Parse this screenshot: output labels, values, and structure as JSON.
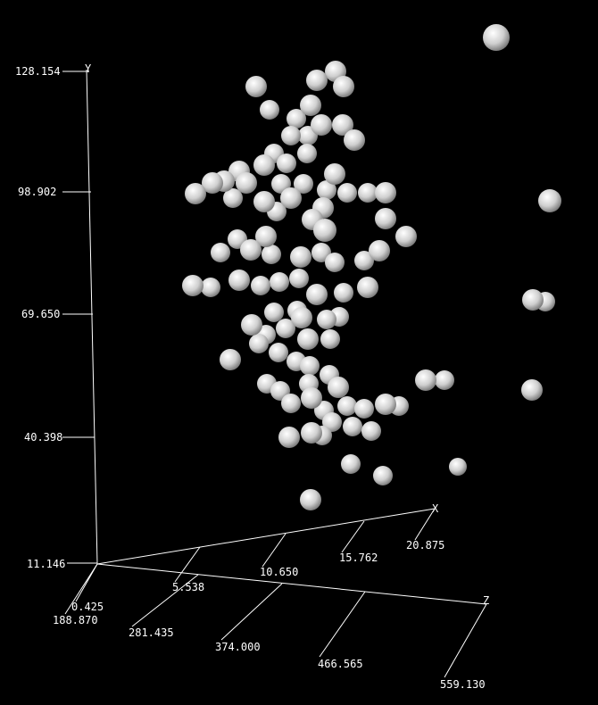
{
  "chart_data": {
    "type": "scatter3d",
    "axes": {
      "x": {
        "label": "X",
        "ticks": [
          "0.425",
          "5.538",
          "10.650",
          "15.762",
          "20.875"
        ],
        "range": [
          0.425,
          20.875
        ]
      },
      "y": {
        "label": "Y",
        "ticks": [
          "11.146",
          "40.398",
          "69.650",
          "98.902",
          "128.154"
        ],
        "range": [
          11.146,
          128.154
        ]
      },
      "z": {
        "label": "Z",
        "ticks": [
          "188.870",
          "281.435",
          "374.000",
          "466.565",
          "559.130"
        ],
        "range": [
          188.87,
          559.13
        ]
      }
    },
    "colors": {
      "background": "#000000",
      "axes": "#ffffff",
      "points": "#d9d9d9"
    },
    "points_screen": [
      [
        556,
        42,
        15
      ],
      [
        376,
        80,
        12
      ],
      [
        287,
        97,
        12
      ],
      [
        355,
        90,
        12
      ],
      [
        385,
        97,
        12
      ],
      [
        302,
        123,
        11
      ],
      [
        348,
        118,
        12
      ],
      [
        332,
        133,
        11
      ],
      [
        384,
        140,
        12
      ],
      [
        360,
        140,
        12
      ],
      [
        397,
        157,
        12
      ],
      [
        345,
        152,
        11
      ],
      [
        326,
        152,
        11
      ],
      [
        307,
        172,
        11
      ],
      [
        344,
        172,
        11
      ],
      [
        321,
        183,
        11
      ],
      [
        296,
        185,
        12
      ],
      [
        268,
        192,
        12
      ],
      [
        251,
        203,
        12
      ],
      [
        238,
        205,
        12
      ],
      [
        219,
        217,
        12
      ],
      [
        276,
        205,
        12
      ],
      [
        261,
        222,
        11
      ],
      [
        315,
        206,
        11
      ],
      [
        340,
        206,
        11
      ],
      [
        375,
        195,
        12
      ],
      [
        366,
        213,
        11
      ],
      [
        389,
        216,
        11
      ],
      [
        412,
        216,
        11
      ],
      [
        432,
        216,
        12
      ],
      [
        616,
        225,
        13
      ],
      [
        296,
        226,
        12
      ],
      [
        326,
        222,
        12
      ],
      [
        310,
        237,
        11
      ],
      [
        362,
        233,
        12
      ],
      [
        350,
        246,
        12
      ],
      [
        364,
        258,
        13
      ],
      [
        432,
        245,
        12
      ],
      [
        455,
        265,
        12
      ],
      [
        266,
        268,
        11
      ],
      [
        298,
        265,
        12
      ],
      [
        281,
        280,
        12
      ],
      [
        247,
        283,
        11
      ],
      [
        304,
        285,
        11
      ],
      [
        337,
        288,
        12
      ],
      [
        360,
        283,
        11
      ],
      [
        375,
        294,
        11
      ],
      [
        425,
        281,
        12
      ],
      [
        408,
        292,
        11
      ],
      [
        268,
        314,
        12
      ],
      [
        216,
        320,
        12
      ],
      [
        236,
        322,
        11
      ],
      [
        292,
        320,
        11
      ],
      [
        313,
        316,
        11
      ],
      [
        335,
        312,
        11
      ],
      [
        355,
        330,
        12
      ],
      [
        385,
        328,
        11
      ],
      [
        412,
        322,
        12
      ],
      [
        597,
        336,
        12
      ],
      [
        611,
        338,
        11
      ],
      [
        333,
        348,
        11
      ],
      [
        307,
        350,
        11
      ],
      [
        282,
        364,
        12
      ],
      [
        338,
        356,
        12
      ],
      [
        366,
        358,
        11
      ],
      [
        380,
        355,
        11
      ],
      [
        320,
        368,
        11
      ],
      [
        298,
        375,
        11
      ],
      [
        290,
        385,
        11
      ],
      [
        345,
        380,
        12
      ],
      [
        370,
        380,
        11
      ],
      [
        258,
        403,
        12
      ],
      [
        312,
        395,
        11
      ],
      [
        332,
        405,
        11
      ],
      [
        347,
        410,
        11
      ],
      [
        369,
        420,
        11
      ],
      [
        299,
        430,
        11
      ],
      [
        314,
        438,
        11
      ],
      [
        346,
        430,
        11
      ],
      [
        379,
        434,
        12
      ],
      [
        477,
        426,
        12
      ],
      [
        498,
        426,
        11
      ],
      [
        596,
        437,
        12
      ],
      [
        326,
        452,
        11
      ],
      [
        349,
        446,
        12
      ],
      [
        363,
        460,
        11
      ],
      [
        389,
        455,
        11
      ],
      [
        408,
        458,
        11
      ],
      [
        432,
        453,
        12
      ],
      [
        447,
        455,
        11
      ],
      [
        372,
        473,
        11
      ],
      [
        395,
        478,
        11
      ],
      [
        416,
        483,
        11
      ],
      [
        349,
        485,
        12
      ],
      [
        324,
        490,
        12
      ],
      [
        361,
        488,
        11
      ],
      [
        393,
        520,
        11
      ],
      [
        429,
        533,
        11
      ],
      [
        513,
        523,
        10
      ],
      [
        348,
        560,
        12
      ]
    ]
  }
}
